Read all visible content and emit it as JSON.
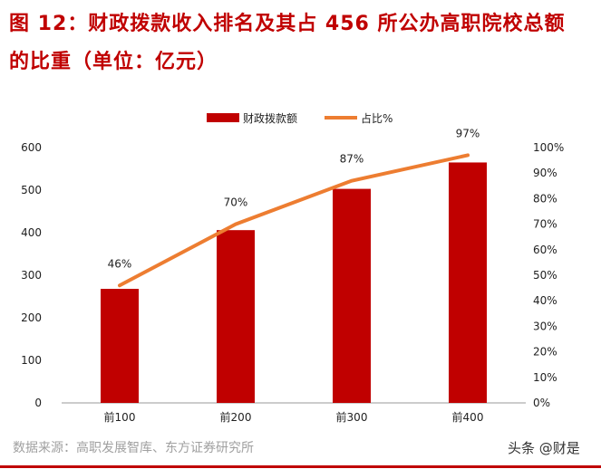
{
  "title_line1": "图 12：财政拨款收入排名及其占 456 所公办高职院校总额",
  "title_line2": "的比重（单位：亿元）",
  "source": "数据来源：高职发展智库、东方证券研究所",
  "watermark": "头条 @财是",
  "chart_data": {
    "type": "bar+line",
    "categories": [
      "前100",
      "前200",
      "前300",
      "前400"
    ],
    "series": [
      {
        "name": "财政拨款额",
        "type": "bar",
        "axis": "left",
        "color": "#c00000",
        "values": [
          268,
          406,
          503,
          565
        ]
      },
      {
        "name": "占比%",
        "type": "line",
        "axis": "right",
        "color": "#ed7d31",
        "values": [
          46,
          70,
          87,
          97
        ],
        "labels": [
          "46%",
          "70%",
          "87%",
          "97%"
        ]
      }
    ],
    "left_ylim": [
      0,
      600
    ],
    "left_ticks": [
      "0",
      "100",
      "200",
      "300",
      "400",
      "500",
      "600"
    ],
    "right_ylim": [
      0,
      100
    ],
    "right_ticks": [
      "0%",
      "10%",
      "20%",
      "30%",
      "40%",
      "50%",
      "60%",
      "70%",
      "80%",
      "90%",
      "100%"
    ],
    "legend": "top-center",
    "grid": false
  }
}
